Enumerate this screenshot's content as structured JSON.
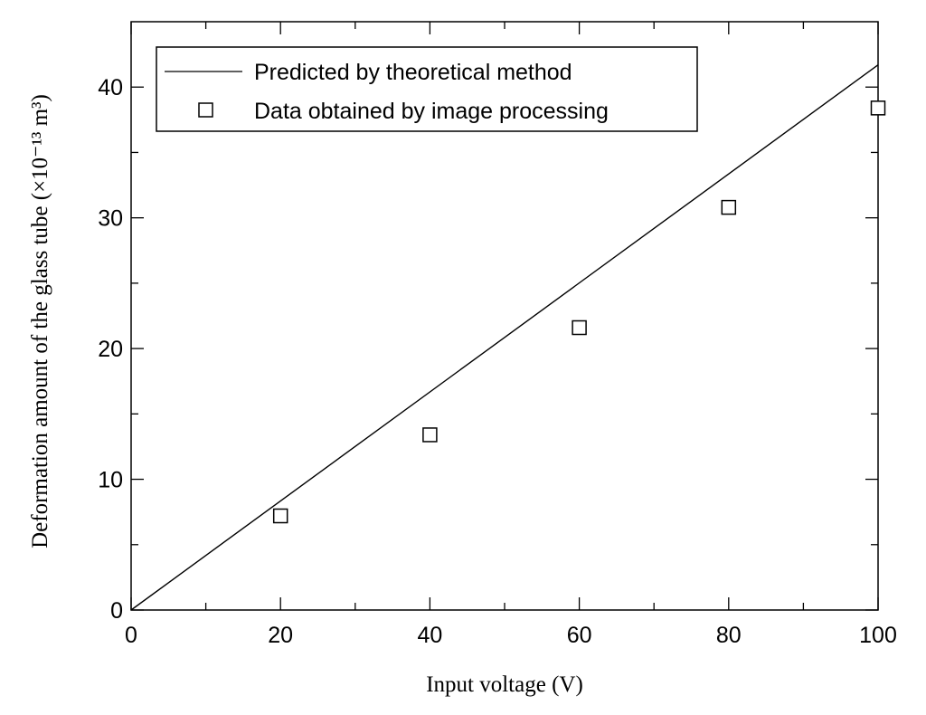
{
  "chart_data": {
    "type": "scatter",
    "title": "",
    "xlabel": "Input voltage  (V)",
    "ylabel": "Deformation amount of the glass tube  (×10⁻¹³ m³)",
    "xlim": [
      0,
      100
    ],
    "ylim": [
      0,
      45
    ],
    "x_ticks": [
      0,
      20,
      40,
      60,
      80,
      100
    ],
    "y_ticks": [
      0,
      10,
      20,
      30,
      40
    ],
    "grid": false,
    "legend_position": "top-left",
    "series": [
      {
        "name": "Predicted by theoretical method",
        "kind": "line",
        "x": [
          0,
          100
        ],
        "y": [
          0,
          41.7
        ]
      },
      {
        "name": "Data obtained by image processing",
        "kind": "markers",
        "marker": "open-square",
        "x": [
          20,
          40,
          60,
          80,
          100
        ],
        "y": [
          7.2,
          13.4,
          21.6,
          30.8,
          38.4
        ]
      }
    ]
  }
}
